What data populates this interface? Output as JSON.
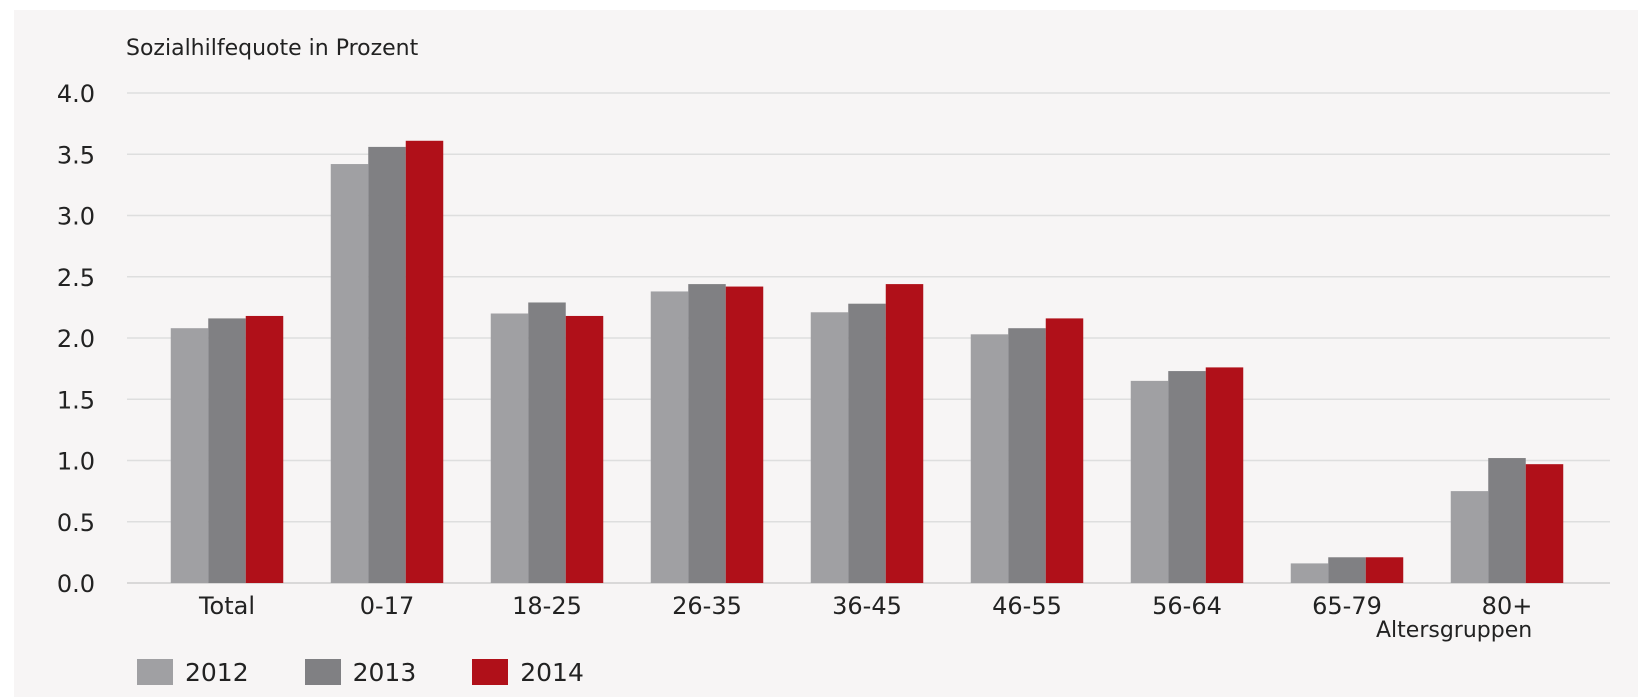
{
  "chart_data": {
    "type": "bar",
    "ylabel": "Sozialhilfequote in Prozent",
    "xlabel": "Altersgruppen",
    "ylim": [
      0,
      4
    ],
    "yticks": [
      "0.0",
      "0.5",
      "1.0",
      "1.5",
      "2.0",
      "2.5",
      "3.0",
      "3.5",
      "4.0"
    ],
    "grid": true,
    "legend": "bottom-left",
    "categories": [
      "Total",
      "0-17",
      "18-25",
      "26-35",
      "36-45",
      "46-55",
      "56-64",
      "65-79",
      "80+"
    ],
    "series": [
      {
        "name": "2012",
        "color": "#a0a0a3",
        "values": [
          2.08,
          3.42,
          2.2,
          2.38,
          2.21,
          2.03,
          1.65,
          0.16,
          0.75
        ]
      },
      {
        "name": "2013",
        "color": "#808083",
        "values": [
          2.16,
          3.56,
          2.29,
          2.44,
          2.28,
          2.08,
          1.73,
          0.21,
          1.02
        ]
      },
      {
        "name": "2014",
        "color": "#b01019",
        "values": [
          2.18,
          3.61,
          2.18,
          2.42,
          2.44,
          2.16,
          1.76,
          0.21,
          0.97
        ]
      }
    ]
  }
}
